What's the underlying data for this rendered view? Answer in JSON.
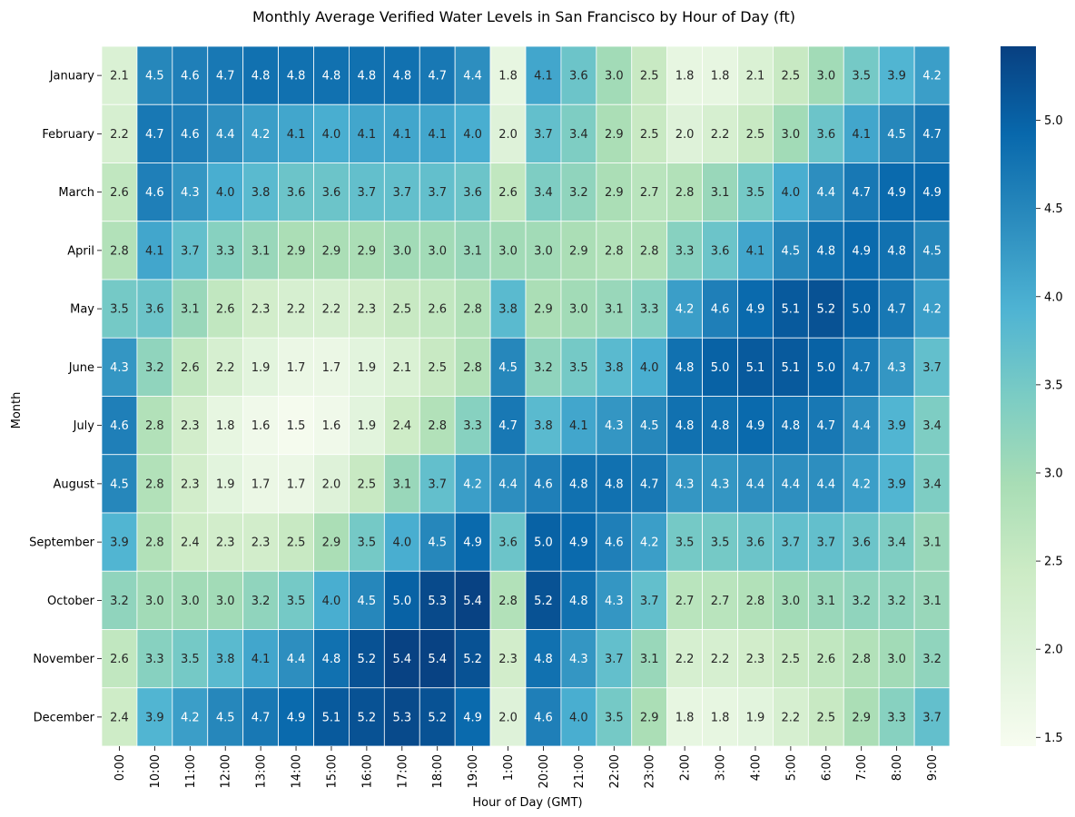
{
  "chart_data": {
    "type": "heatmap",
    "title": "Monthly Average Verified Water Levels in San Francisco by Hour of Day (ft)",
    "xlabel": "Hour of Day (GMT)",
    "ylabel": "Month",
    "x": [
      "0:00",
      "10:00",
      "11:00",
      "12:00",
      "13:00",
      "14:00",
      "15:00",
      "16:00",
      "17:00",
      "18:00",
      "19:00",
      "1:00",
      "20:00",
      "21:00",
      "22:00",
      "23:00",
      "2:00",
      "3:00",
      "4:00",
      "5:00",
      "6:00",
      "7:00",
      "8:00",
      "9:00"
    ],
    "y": [
      "January",
      "February",
      "March",
      "April",
      "May",
      "June",
      "July",
      "August",
      "September",
      "October",
      "November",
      "December"
    ],
    "values": [
      [
        2.1,
        4.5,
        4.6,
        4.7,
        4.8,
        4.8,
        4.8,
        4.8,
        4.8,
        4.7,
        4.4,
        1.8,
        4.1,
        3.6,
        3.0,
        2.5,
        1.8,
        1.8,
        2.1,
        2.5,
        3.0,
        3.5,
        3.9,
        4.2
      ],
      [
        2.2,
        4.7,
        4.6,
        4.4,
        4.2,
        4.1,
        4.0,
        4.1,
        4.1,
        4.1,
        4.0,
        2.0,
        3.7,
        3.4,
        2.9,
        2.5,
        2.0,
        2.2,
        2.5,
        3.0,
        3.6,
        4.1,
        4.5,
        4.7
      ],
      [
        2.6,
        4.6,
        4.3,
        4.0,
        3.8,
        3.6,
        3.6,
        3.7,
        3.7,
        3.7,
        3.6,
        2.6,
        3.4,
        3.2,
        2.9,
        2.7,
        2.8,
        3.1,
        3.5,
        4.0,
        4.4,
        4.7,
        4.9,
        4.9
      ],
      [
        2.8,
        4.1,
        3.7,
        3.3,
        3.1,
        2.9,
        2.9,
        2.9,
        3.0,
        3.0,
        3.1,
        3.0,
        3.0,
        2.9,
        2.8,
        2.8,
        3.3,
        3.6,
        4.1,
        4.5,
        4.8,
        4.9,
        4.8,
        4.5
      ],
      [
        3.5,
        3.6,
        3.1,
        2.6,
        2.3,
        2.2,
        2.2,
        2.3,
        2.5,
        2.6,
        2.8,
        3.8,
        2.9,
        3.0,
        3.1,
        3.3,
        4.2,
        4.6,
        4.9,
        5.1,
        5.2,
        5.0,
        4.7,
        4.2
      ],
      [
        4.3,
        3.2,
        2.6,
        2.2,
        1.9,
        1.7,
        1.7,
        1.9,
        2.1,
        2.5,
        2.8,
        4.5,
        3.2,
        3.5,
        3.8,
        4.0,
        4.8,
        5.0,
        5.1,
        5.1,
        5.0,
        4.7,
        4.3,
        3.7
      ],
      [
        4.6,
        2.8,
        2.3,
        1.8,
        1.6,
        1.5,
        1.6,
        1.9,
        2.4,
        2.8,
        3.3,
        4.7,
        3.8,
        4.1,
        4.3,
        4.5,
        4.8,
        4.8,
        4.9,
        4.8,
        4.7,
        4.4,
        3.9,
        3.4
      ],
      [
        4.5,
        2.8,
        2.3,
        1.9,
        1.7,
        1.7,
        2.0,
        2.5,
        3.1,
        3.7,
        4.2,
        4.4,
        4.6,
        4.8,
        4.8,
        4.7,
        4.3,
        4.3,
        4.4,
        4.4,
        4.4,
        4.2,
        3.9,
        3.4
      ],
      [
        3.9,
        2.8,
        2.4,
        2.3,
        2.3,
        2.5,
        2.9,
        3.5,
        4.0,
        4.5,
        4.9,
        3.6,
        5.0,
        4.9,
        4.6,
        4.2,
        3.5,
        3.5,
        3.6,
        3.7,
        3.7,
        3.6,
        3.4,
        3.1
      ],
      [
        3.2,
        3.0,
        3.0,
        3.0,
        3.2,
        3.5,
        4.0,
        4.5,
        5.0,
        5.3,
        5.4,
        2.8,
        5.2,
        4.8,
        4.3,
        3.7,
        2.7,
        2.7,
        2.8,
        3.0,
        3.1,
        3.2,
        3.2,
        3.1
      ],
      [
        2.6,
        3.3,
        3.5,
        3.8,
        4.1,
        4.4,
        4.8,
        5.2,
        5.4,
        5.4,
        5.2,
        2.3,
        4.8,
        4.3,
        3.7,
        3.1,
        2.2,
        2.2,
        2.3,
        2.5,
        2.6,
        2.8,
        3.0,
        3.2
      ],
      [
        2.4,
        3.9,
        4.2,
        4.5,
        4.7,
        4.9,
        5.1,
        5.2,
        5.3,
        5.2,
        4.9,
        2.0,
        4.6,
        4.0,
        3.5,
        2.9,
        1.8,
        1.8,
        1.9,
        2.2,
        2.5,
        2.9,
        3.3,
        3.7
      ]
    ],
    "colorbar": {
      "min": 1.45,
      "max": 5.42,
      "ticks": [
        "1.5",
        "2.0",
        "2.5",
        "3.0",
        "3.5",
        "4.0",
        "4.5",
        "5.0"
      ],
      "colormap": "GnBu",
      "stops": [
        "#f7fcf0",
        "#e0f3db",
        "#ccebc5",
        "#a8ddb5",
        "#7bccc4",
        "#4eb3d3",
        "#2b8cbe",
        "#0868ac",
        "#084081"
      ]
    },
    "value_precision": 1,
    "grid_lines_color": "#ffffff"
  }
}
